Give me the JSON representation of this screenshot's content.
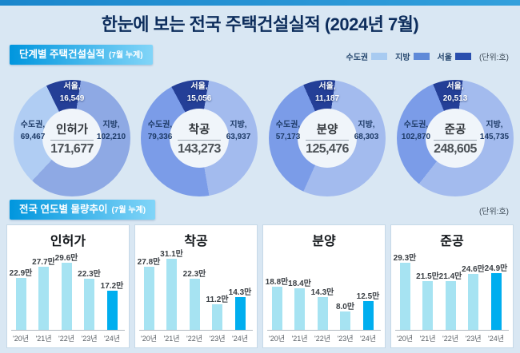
{
  "title": "한눈에 보는 전국 주택건설실적 (2024년 7월)",
  "section1": {
    "header": "단계별 주택건설실적",
    "header_suffix": "(7월 누계)",
    "unit": "(단위:호)",
    "legend": [
      {
        "label": "수도권",
        "color": "#a8cbf1"
      },
      {
        "label": "지방",
        "color": "#5f8ad8"
      },
      {
        "label": "서울",
        "color": "#2a4fae"
      }
    ]
  },
  "section2": {
    "header": "전국 연도별 물량추이",
    "header_suffix": "(7월 누계)",
    "unit": "(단위:호)"
  },
  "chart_data": [
    {
      "type": "donut",
      "title": "인허가",
      "total": 171677,
      "total_display": "171,677",
      "note": "수도권 value includes 서울; ring shows 서울 / 수도권(excl.서울) / 지방",
      "slices": [
        {
          "label": "서울",
          "label_display": "서울,",
          "value": 16549,
          "display": "16,549",
          "color": "#243f97"
        },
        {
          "label": "수도권",
          "label_display": "수도권,",
          "value": 69467,
          "display": "69,467",
          "color": "#b0cdf3"
        },
        {
          "label": "지방",
          "label_display": "지방,",
          "value": 102210,
          "display": "102,210",
          "color": "#8ea9e4"
        }
      ]
    },
    {
      "type": "donut",
      "title": "착공",
      "total": 143273,
      "total_display": "143,273",
      "note": "수도권 value includes 서울",
      "slices": [
        {
          "label": "서울",
          "label_display": "서울,",
          "value": 15056,
          "display": "15,056",
          "color": "#243f97"
        },
        {
          "label": "수도권",
          "label_display": "수도권,",
          "value": 79336,
          "display": "79,336",
          "color": "#7b9ce8"
        },
        {
          "label": "지방",
          "label_display": "지방,",
          "value": 63937,
          "display": "63,937",
          "color": "#a3bbee"
        }
      ]
    },
    {
      "type": "donut",
      "title": "분양",
      "total": 125476,
      "total_display": "125,476",
      "note": "수도권 value includes 서울",
      "slices": [
        {
          "label": "서울",
          "label_display": "서울,",
          "value": 11187,
          "display": "11,187",
          "color": "#243f97"
        },
        {
          "label": "수도권",
          "label_display": "수도권,",
          "value": 57173,
          "display": "57,173",
          "color": "#7b9ce8"
        },
        {
          "label": "지방",
          "label_display": "지방,",
          "value": 68303,
          "display": "68,303",
          "color": "#a3bbee"
        }
      ]
    },
    {
      "type": "donut",
      "title": "준공",
      "total": 248605,
      "total_display": "248,605",
      "note": "수도권 value includes 서울",
      "slices": [
        {
          "label": "서울",
          "label_display": "서울,",
          "value": 20513,
          "display": "20,513",
          "color": "#243f97"
        },
        {
          "label": "수도권",
          "label_display": "수도권,",
          "value": 102870,
          "display": "102,870",
          "color": "#7b9ce8"
        },
        {
          "label": "지방",
          "label_display": "지방,",
          "value": 145735,
          "display": "145,735",
          "color": "#a3bbee"
        }
      ]
    },
    {
      "type": "bar",
      "title": "인허가",
      "unit": "만 호",
      "ylim": [
        0,
        35
      ],
      "categories": [
        "'20년",
        "'21년",
        "'22년",
        "'23년",
        "'24년"
      ],
      "values": [
        22.9,
        27.7,
        29.6,
        22.3,
        17.2
      ],
      "value_labels": [
        "22.9만",
        "27.7만",
        "29.6만",
        "22.3만",
        "17.2만"
      ],
      "bar_color": "#a6e3f2",
      "last_bar_color": "#00aeef"
    },
    {
      "type": "bar",
      "title": "착공",
      "unit": "만 호",
      "ylim": [
        0,
        35
      ],
      "categories": [
        "'20년",
        "'21년",
        "'22년",
        "'23년",
        "'24년"
      ],
      "values": [
        27.8,
        31.1,
        22.3,
        11.2,
        14.3
      ],
      "value_labels": [
        "27.8만",
        "31.1만",
        "22.3만",
        "11.2만",
        "14.3만"
      ],
      "bar_color": "#a6e3f2",
      "last_bar_color": "#00aeef"
    },
    {
      "type": "bar",
      "title": "분양",
      "unit": "만 호",
      "ylim": [
        0,
        35
      ],
      "categories": [
        "'20년",
        "'21년",
        "'22년",
        "'23년",
        "'24년"
      ],
      "values": [
        18.8,
        18.4,
        14.3,
        8.0,
        12.5
      ],
      "value_labels": [
        "18.8만",
        "18.4만",
        "14.3만",
        "8.0만",
        "12.5만"
      ],
      "bar_color": "#a6e3f2",
      "last_bar_color": "#00aeef"
    },
    {
      "type": "bar",
      "title": "준공",
      "unit": "만 호",
      "ylim": [
        0,
        35
      ],
      "categories": [
        "'20년",
        "'21년",
        "'22년",
        "'23년",
        "'24년"
      ],
      "values": [
        29.3,
        21.5,
        21.4,
        24.6,
        24.9
      ],
      "value_labels": [
        "29.3만",
        "21.5만",
        "21.4만",
        "24.6만",
        "24.9만"
      ],
      "bar_color": "#a6e3f2",
      "last_bar_color": "#00aeef"
    }
  ]
}
